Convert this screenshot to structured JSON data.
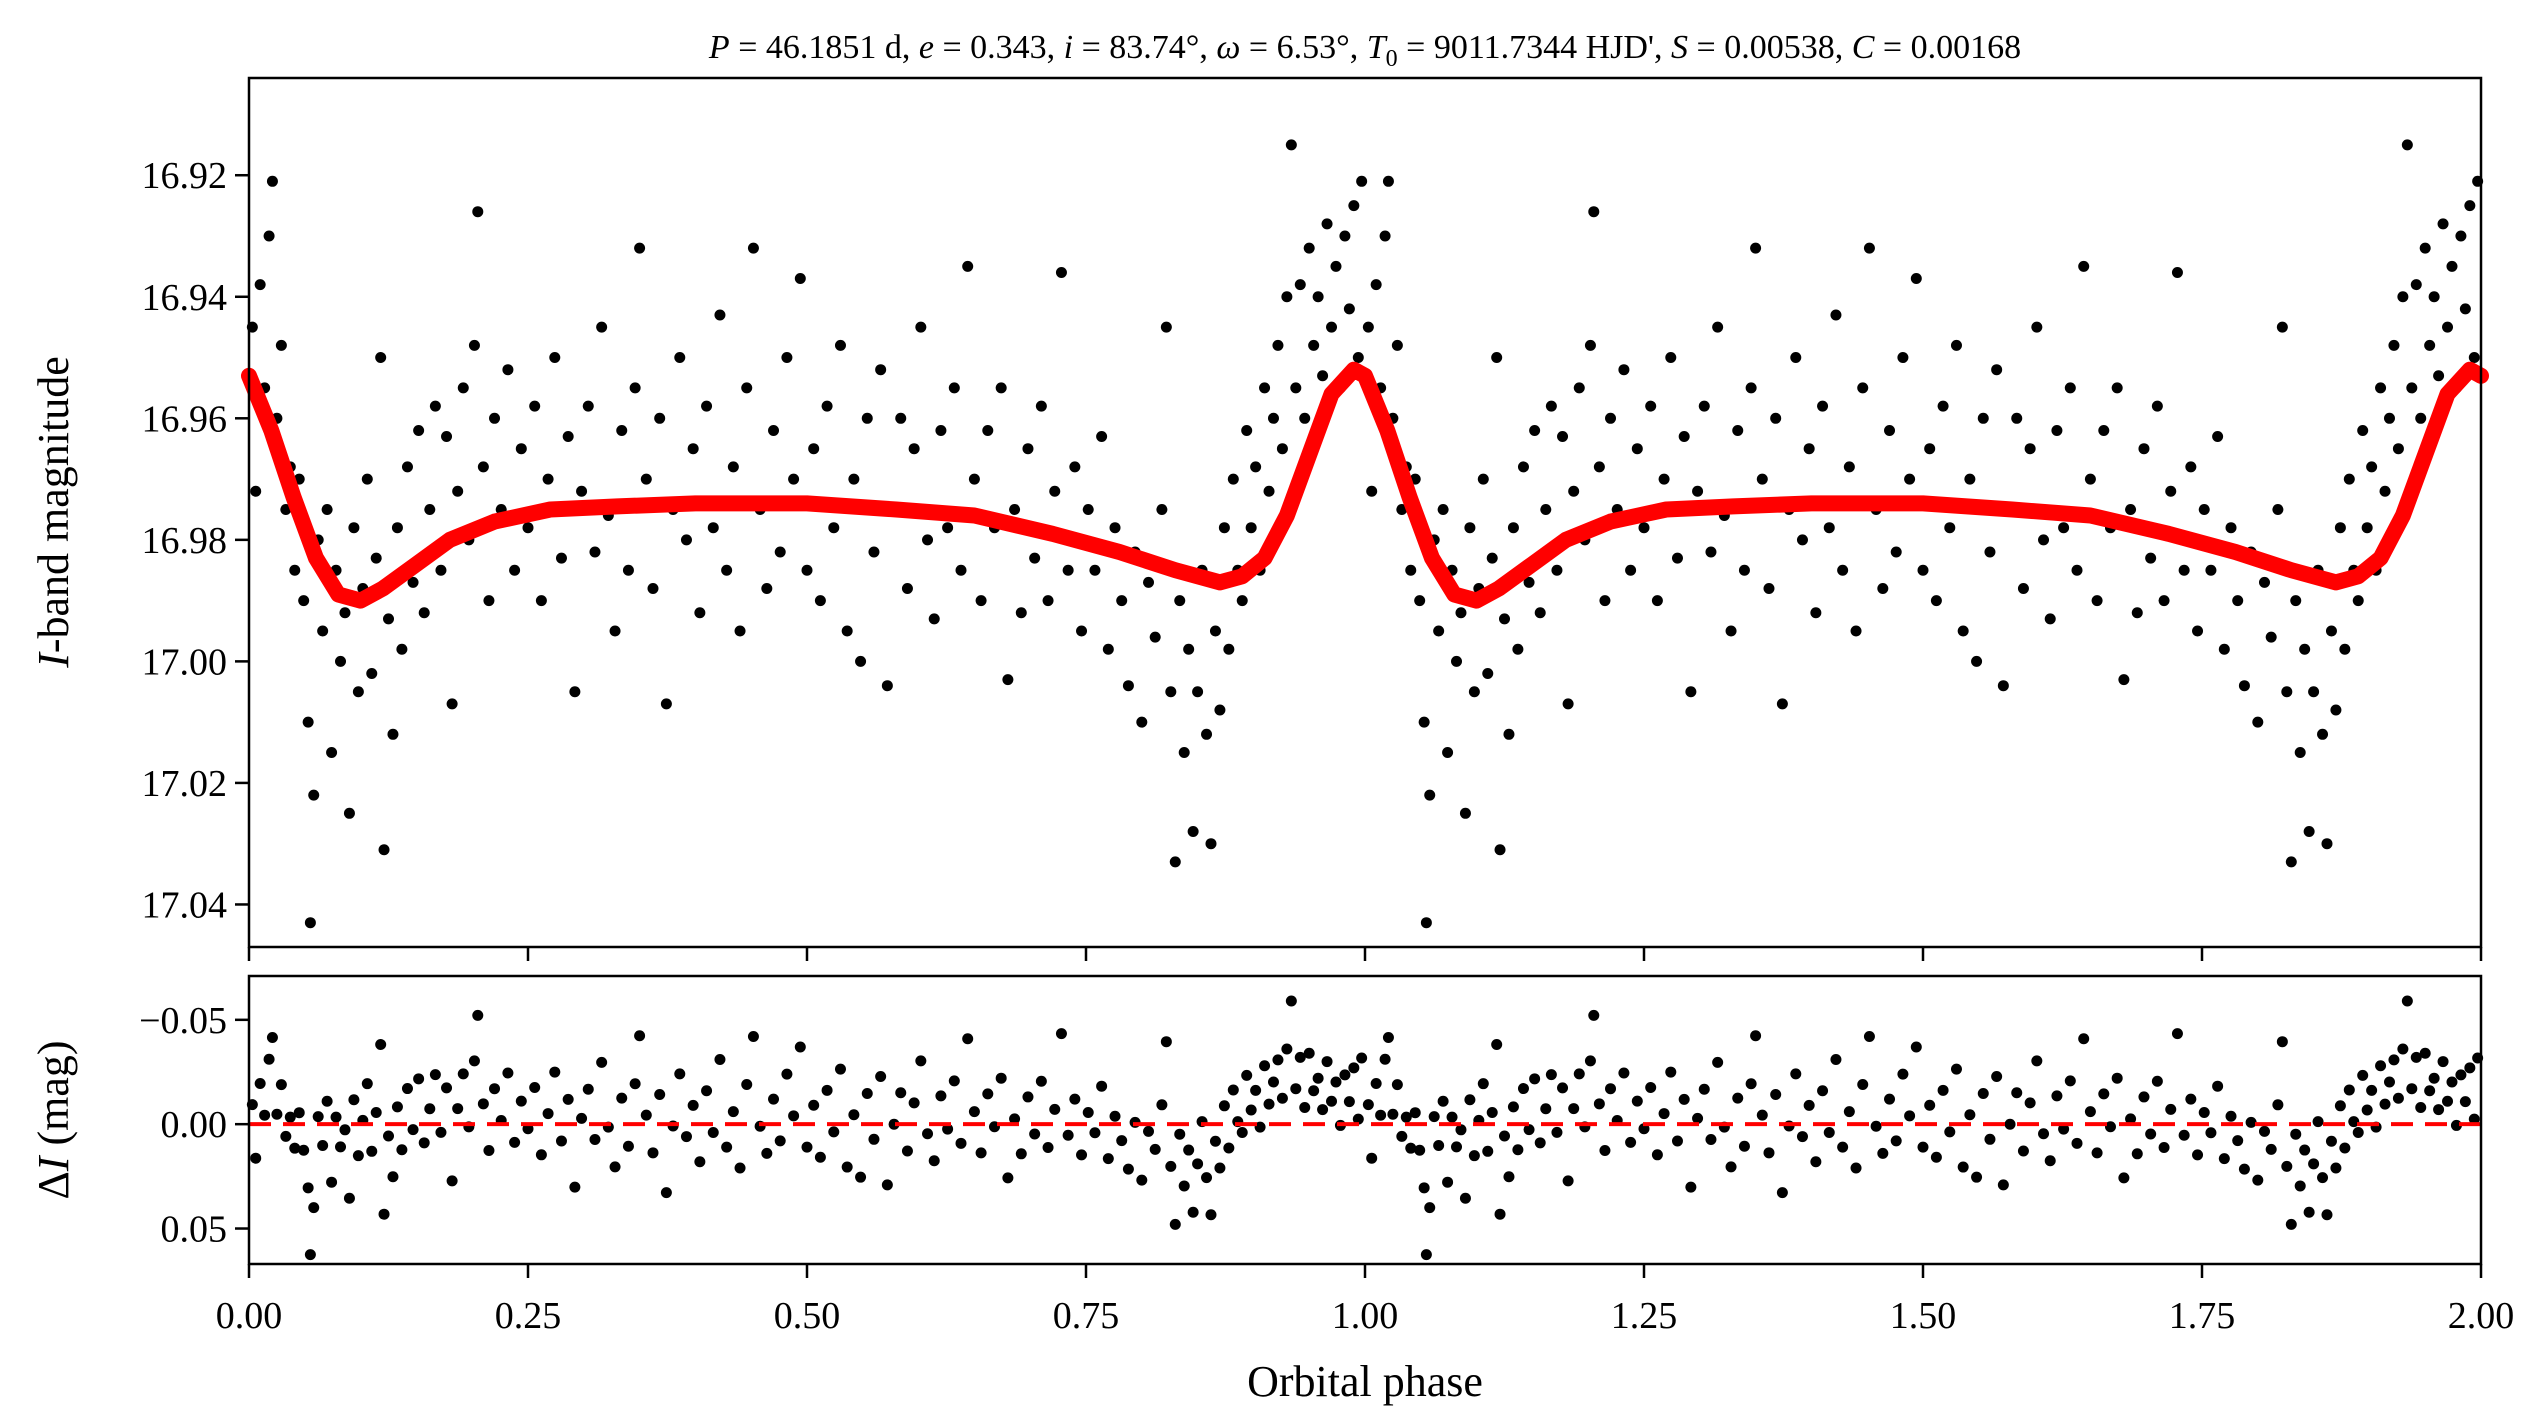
{
  "chart_data": {
    "type": "scatter",
    "title": "P = 46.1851 d, e = 0.343, i = 83.74°, ω = 6.53°, T0 = 9011.7344 HJD', S = 0.00538, C = 0.00168",
    "title_parts": {
      "P": "46.1851 d",
      "e": "0.343",
      "i": "83.74°",
      "omega": "6.53°",
      "T0": "9011.7344 HJD'",
      "S": "0.00538",
      "C": "0.00168"
    },
    "xlabel": "Orbital phase",
    "top_panel": {
      "ylabel_italic": "I",
      "ylabel_rest": "-band magnitude",
      "ylim": [
        16.904,
        17.047
      ],
      "inverted": true,
      "yticks": [
        16.92,
        16.94,
        16.96,
        16.98,
        17.0,
        17.02,
        17.04
      ],
      "ytick_labels": [
        "16.92",
        "16.94",
        "16.96",
        "16.98",
        "17.00",
        "17.02",
        "17.04"
      ]
    },
    "bottom_panel": {
      "ylabel_prefix": "Δ",
      "ylabel_italic": "I",
      "ylabel_rest": " (mag)",
      "ylim": [
        -0.071,
        0.067
      ],
      "inverted": true,
      "yticks": [
        -0.05,
        0.0,
        0.05
      ],
      "ytick_labels": [
        "−0.05",
        "0.00",
        "0.05"
      ],
      "reference_line": 0.0
    },
    "xlim": [
      0,
      2
    ],
    "xticks": [
      0,
      0.25,
      0.5,
      0.75,
      1.0,
      1.25,
      1.5,
      1.75,
      2.0
    ],
    "xtick_labels": [
      "0.00",
      "0.25",
      "0.50",
      "0.75",
      "1.00",
      "1.25",
      "1.50",
      "1.75",
      "2.00"
    ],
    "phase_repeat": 2,
    "colors": {
      "points": "#000000",
      "model": "#ff0000",
      "reference": "#ff0000"
    },
    "model": [
      [
        0,
        16.953
      ],
      [
        0.02,
        16.962
      ],
      [
        0.04,
        16.973
      ],
      [
        0.06,
        16.983
      ],
      [
        0.08,
        16.989
      ],
      [
        0.1,
        16.99
      ],
      [
        0.12,
        16.988
      ],
      [
        0.15,
        16.984
      ],
      [
        0.18,
        16.98
      ],
      [
        0.22,
        16.977
      ],
      [
        0.27,
        16.975
      ],
      [
        0.33,
        16.9745
      ],
      [
        0.4,
        16.974
      ],
      [
        0.5,
        16.974
      ],
      [
        0.58,
        16.975
      ],
      [
        0.65,
        16.976
      ],
      [
        0.72,
        16.979
      ],
      [
        0.78,
        16.982
      ],
      [
        0.83,
        16.985
      ],
      [
        0.87,
        16.987
      ],
      [
        0.89,
        16.986
      ],
      [
        0.91,
        16.983
      ],
      [
        0.93,
        16.976
      ],
      [
        0.95,
        16.966
      ],
      [
        0.97,
        16.956
      ],
      [
        0.99,
        16.952
      ],
      [
        1.0,
        16.953
      ]
    ],
    "observations": [
      [
        0.003,
        16.945
      ],
      [
        0.006,
        16.972
      ],
      [
        0.01,
        16.938
      ],
      [
        0.014,
        16.955
      ],
      [
        0.018,
        16.93
      ],
      [
        0.021,
        16.921
      ],
      [
        0.025,
        16.96
      ],
      [
        0.029,
        16.948
      ],
      [
        0.033,
        16.975
      ],
      [
        0.037,
        16.968
      ],
      [
        0.041,
        16.985
      ],
      [
        0.045,
        16.97
      ],
      [
        0.049,
        16.99
      ],
      [
        0.053,
        17.01
      ],
      [
        0.055,
        17.043
      ],
      [
        0.058,
        17.022
      ],
      [
        0.062,
        16.98
      ],
      [
        0.066,
        16.995
      ],
      [
        0.07,
        16.975
      ],
      [
        0.074,
        17.015
      ],
      [
        0.078,
        16.985
      ],
      [
        0.082,
        17.0
      ],
      [
        0.086,
        16.992
      ],
      [
        0.09,
        17.025
      ],
      [
        0.094,
        16.978
      ],
      [
        0.098,
        17.005
      ],
      [
        0.102,
        16.988
      ],
      [
        0.106,
        16.97
      ],
      [
        0.11,
        17.002
      ],
      [
        0.114,
        16.983
      ],
      [
        0.118,
        16.95
      ],
      [
        0.121,
        17.031
      ],
      [
        0.125,
        16.993
      ],
      [
        0.129,
        17.012
      ],
      [
        0.133,
        16.978
      ],
      [
        0.137,
        16.998
      ],
      [
        0.142,
        16.968
      ],
      [
        0.147,
        16.987
      ],
      [
        0.152,
        16.962
      ],
      [
        0.157,
        16.992
      ],
      [
        0.162,
        16.975
      ],
      [
        0.167,
        16.958
      ],
      [
        0.172,
        16.985
      ],
      [
        0.177,
        16.963
      ],
      [
        0.182,
        17.007
      ],
      [
        0.187,
        16.972
      ],
      [
        0.192,
        16.955
      ],
      [
        0.197,
        16.98
      ],
      [
        0.202,
        16.948
      ],
      [
        0.205,
        16.926
      ],
      [
        0.21,
        16.968
      ],
      [
        0.215,
        16.99
      ],
      [
        0.22,
        16.96
      ],
      [
        0.226,
        16.975
      ],
      [
        0.232,
        16.952
      ],
      [
        0.238,
        16.985
      ],
      [
        0.244,
        16.965
      ],
      [
        0.25,
        16.978
      ],
      [
        0.256,
        16.958
      ],
      [
        0.262,
        16.99
      ],
      [
        0.268,
        16.97
      ],
      [
        0.274,
        16.95
      ],
      [
        0.28,
        16.983
      ],
      [
        0.286,
        16.963
      ],
      [
        0.292,
        17.005
      ],
      [
        0.298,
        16.972
      ],
      [
        0.304,
        16.958
      ],
      [
        0.31,
        16.982
      ],
      [
        0.316,
        16.945
      ],
      [
        0.322,
        16.976
      ],
      [
        0.328,
        16.995
      ],
      [
        0.334,
        16.962
      ],
      [
        0.34,
        16.985
      ],
      [
        0.346,
        16.955
      ],
      [
        0.35,
        16.932
      ],
      [
        0.356,
        16.97
      ],
      [
        0.362,
        16.988
      ],
      [
        0.368,
        16.96
      ],
      [
        0.374,
        17.007
      ],
      [
        0.38,
        16.975
      ],
      [
        0.386,
        16.95
      ],
      [
        0.392,
        16.98
      ],
      [
        0.398,
        16.965
      ],
      [
        0.404,
        16.992
      ],
      [
        0.41,
        16.958
      ],
      [
        0.416,
        16.978
      ],
      [
        0.422,
        16.943
      ],
      [
        0.428,
        16.985
      ],
      [
        0.434,
        16.968
      ],
      [
        0.44,
        16.995
      ],
      [
        0.446,
        16.955
      ],
      [
        0.452,
        16.932
      ],
      [
        0.458,
        16.975
      ],
      [
        0.464,
        16.988
      ],
      [
        0.47,
        16.962
      ],
      [
        0.476,
        16.982
      ],
      [
        0.482,
        16.95
      ],
      [
        0.488,
        16.97
      ],
      [
        0.494,
        16.937
      ],
      [
        0.5,
        16.985
      ],
      [
        0.506,
        16.965
      ],
      [
        0.512,
        16.99
      ],
      [
        0.518,
        16.958
      ],
      [
        0.524,
        16.978
      ],
      [
        0.53,
        16.948
      ],
      [
        0.536,
        16.995
      ],
      [
        0.542,
        16.97
      ],
      [
        0.548,
        17.0
      ],
      [
        0.554,
        16.96
      ],
      [
        0.56,
        16.982
      ],
      [
        0.566,
        16.952
      ],
      [
        0.572,
        17.004
      ],
      [
        0.578,
        16.975
      ],
      [
        0.584,
        16.96
      ],
      [
        0.59,
        16.988
      ],
      [
        0.596,
        16.965
      ],
      [
        0.602,
        16.945
      ],
      [
        0.608,
        16.98
      ],
      [
        0.614,
        16.993
      ],
      [
        0.62,
        16.962
      ],
      [
        0.626,
        16.978
      ],
      [
        0.632,
        16.955
      ],
      [
        0.638,
        16.985
      ],
      [
        0.644,
        16.935
      ],
      [
        0.65,
        16.97
      ],
      [
        0.656,
        16.99
      ],
      [
        0.662,
        16.962
      ],
      [
        0.668,
        16.978
      ],
      [
        0.674,
        16.955
      ],
      [
        0.68,
        17.003
      ],
      [
        0.686,
        16.975
      ],
      [
        0.692,
        16.992
      ],
      [
        0.698,
        16.965
      ],
      [
        0.704,
        16.983
      ],
      [
        0.71,
        16.958
      ],
      [
        0.716,
        16.99
      ],
      [
        0.722,
        16.972
      ],
      [
        0.728,
        16.936
      ],
      [
        0.734,
        16.985
      ],
      [
        0.74,
        16.968
      ],
      [
        0.746,
        16.995
      ],
      [
        0.752,
        16.975
      ],
      [
        0.758,
        16.985
      ],
      [
        0.764,
        16.963
      ],
      [
        0.77,
        16.998
      ],
      [
        0.776,
        16.978
      ],
      [
        0.782,
        16.99
      ],
      [
        0.788,
        17.004
      ],
      [
        0.794,
        16.982
      ],
      [
        0.8,
        17.01
      ],
      [
        0.806,
        16.987
      ],
      [
        0.812,
        16.996
      ],
      [
        0.818,
        16.975
      ],
      [
        0.822,
        16.945
      ],
      [
        0.826,
        17.005
      ],
      [
        0.83,
        17.033
      ],
      [
        0.834,
        16.99
      ],
      [
        0.838,
        17.015
      ],
      [
        0.842,
        16.998
      ],
      [
        0.846,
        17.028
      ],
      [
        0.85,
        17.005
      ],
      [
        0.854,
        16.985
      ],
      [
        0.858,
        17.012
      ],
      [
        0.862,
        17.03
      ],
      [
        0.866,
        16.995
      ],
      [
        0.87,
        17.008
      ],
      [
        0.874,
        16.978
      ],
      [
        0.878,
        16.998
      ],
      [
        0.882,
        16.97
      ],
      [
        0.886,
        16.985
      ],
      [
        0.89,
        16.99
      ],
      [
        0.894,
        16.962
      ],
      [
        0.898,
        16.978
      ],
      [
        0.902,
        16.968
      ],
      [
        0.906,
        16.985
      ],
      [
        0.91,
        16.955
      ],
      [
        0.914,
        16.972
      ],
      [
        0.918,
        16.96
      ],
      [
        0.922,
        16.948
      ],
      [
        0.926,
        16.965
      ],
      [
        0.93,
        16.94
      ],
      [
        0.934,
        16.915
      ],
      [
        0.938,
        16.955
      ],
      [
        0.942,
        16.938
      ],
      [
        0.946,
        16.96
      ],
      [
        0.95,
        16.932
      ],
      [
        0.954,
        16.948
      ],
      [
        0.958,
        16.94
      ],
      [
        0.962,
        16.953
      ],
      [
        0.966,
        16.928
      ],
      [
        0.97,
        16.945
      ],
      [
        0.974,
        16.935
      ],
      [
        0.978,
        16.955
      ],
      [
        0.982,
        16.93
      ],
      [
        0.986,
        16.942
      ],
      [
        0.99,
        16.925
      ],
      [
        0.994,
        16.95
      ],
      [
        0.997,
        16.921
      ]
    ]
  }
}
